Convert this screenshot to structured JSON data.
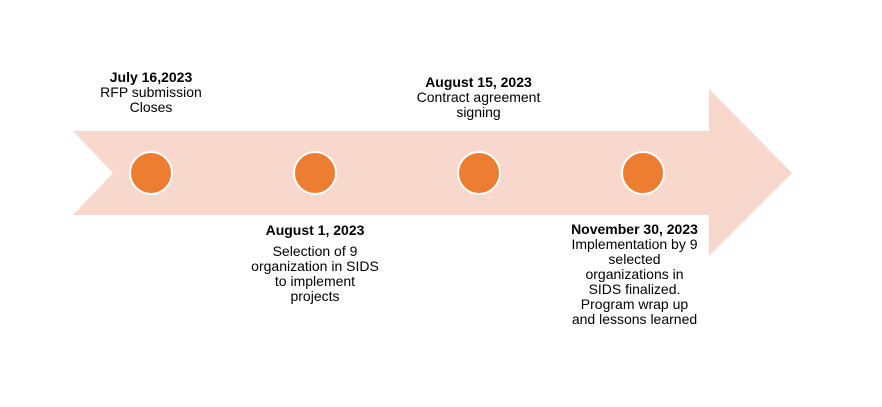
{
  "colors": {
    "arrow_fill": "#f8d7cd",
    "dot_fill": "#ed7d31",
    "dot_stroke": "#ffffff",
    "text": "#000000"
  },
  "milestones": [
    {
      "date": "July 16,2023",
      "description": "RFP submission\nCloses"
    },
    {
      "date": "August 1, 2023",
      "description": "Selection of 9\norganization in SIDS\nto implement\nprojects"
    },
    {
      "date": "August 15, 2023",
      "description": "Contract agreement\nsigning"
    },
    {
      "date": "November 30, 2023",
      "description": "Implementation by 9\nselected\norganizations in\nSIDS finalized.\nProgram wrap up\nand lessons learned"
    }
  ]
}
